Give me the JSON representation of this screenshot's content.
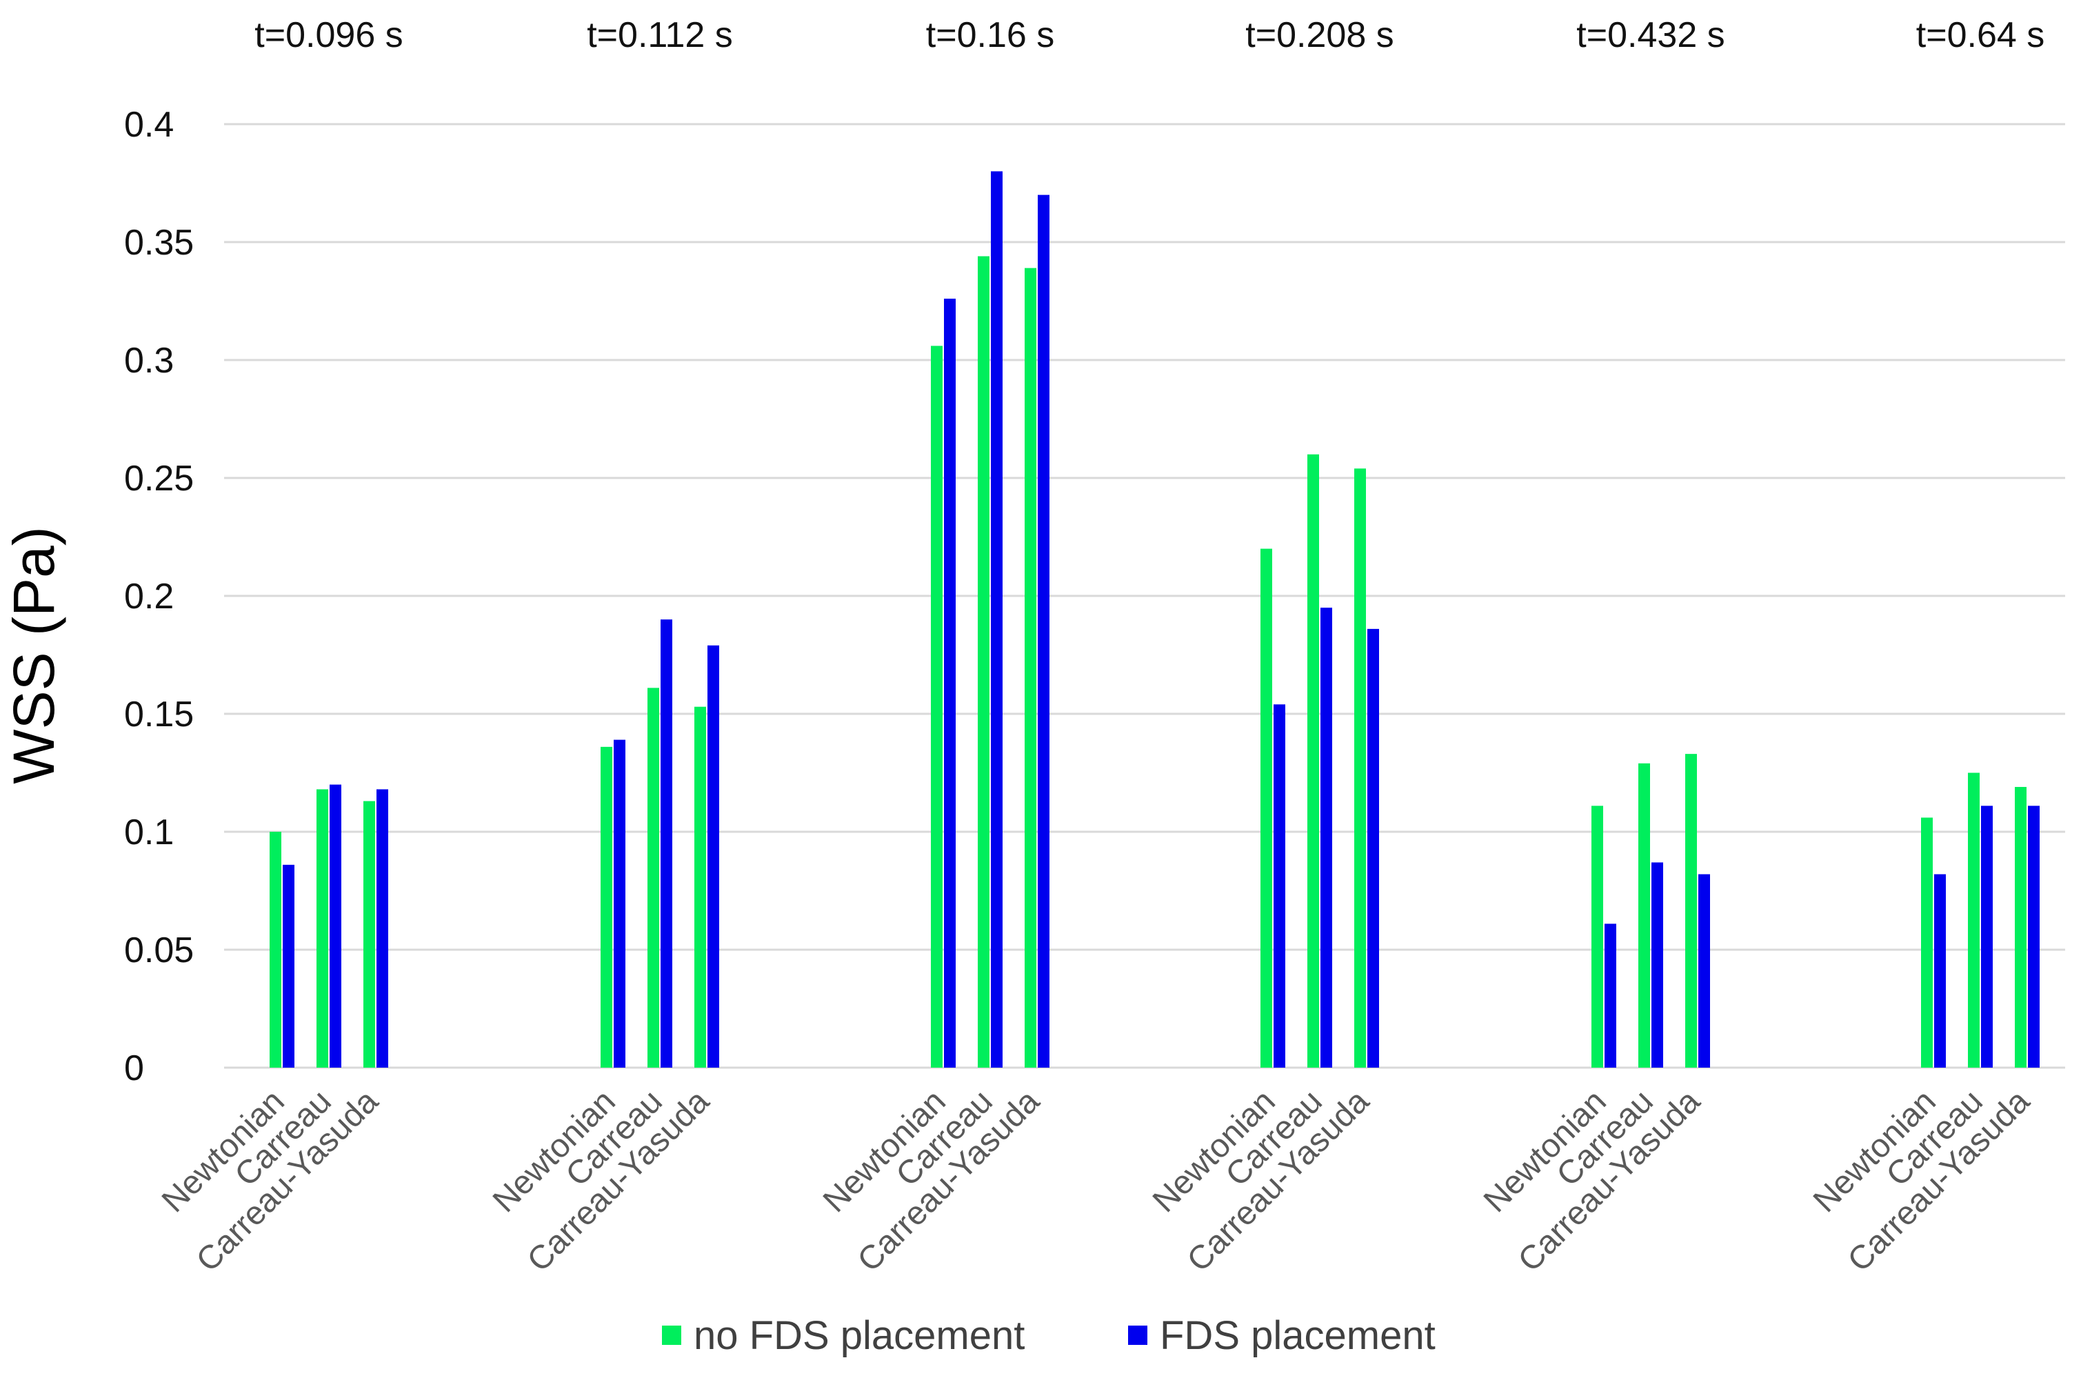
{
  "chart_data": {
    "type": "bar",
    "ylabel": "WSS (Pa)",
    "xlabel": "",
    "ylim": [
      0,
      0.4
    ],
    "yticks": [
      0,
      0.05,
      0.1,
      0.15,
      0.2,
      0.25,
      0.3,
      0.35,
      0.4
    ],
    "ytick_labels": [
      "0",
      "0.05",
      "0.1",
      "0.15",
      "0.2",
      "0.25",
      "0.3",
      "0.35",
      "0.4"
    ],
    "grid": true,
    "legend_position": "bottom",
    "models": [
      "Newtonian",
      "Carreau",
      "Carreau-Yasuda"
    ],
    "groups": [
      {
        "title": "t=0.096 s",
        "no_fds": [
          0.1,
          0.118,
          0.113
        ],
        "fds": [
          0.086,
          0.12,
          0.118
        ]
      },
      {
        "title": "t=0.112 s",
        "no_fds": [
          0.136,
          0.161,
          0.153
        ],
        "fds": [
          0.139,
          0.19,
          0.179
        ]
      },
      {
        "title": "t=0.16 s",
        "no_fds": [
          0.306,
          0.344,
          0.339
        ],
        "fds": [
          0.326,
          0.38,
          0.37
        ]
      },
      {
        "title": "t=0.208 s",
        "no_fds": [
          0.22,
          0.26,
          0.254
        ],
        "fds": [
          0.154,
          0.195,
          0.186
        ]
      },
      {
        "title": "t=0.432 s",
        "no_fds": [
          0.111,
          0.129,
          0.133
        ],
        "fds": [
          0.061,
          0.087,
          0.082
        ]
      },
      {
        "title": "t=0.64 s",
        "no_fds": [
          0.106,
          0.125,
          0.119
        ],
        "fds": [
          0.082,
          0.111,
          0.111
        ]
      }
    ],
    "series": [
      {
        "key": "no_fds",
        "name": "no FDS placement",
        "color": "#00ee5c"
      },
      {
        "key": "fds",
        "name": "FDS placement",
        "color": "#0000ee"
      }
    ]
  }
}
